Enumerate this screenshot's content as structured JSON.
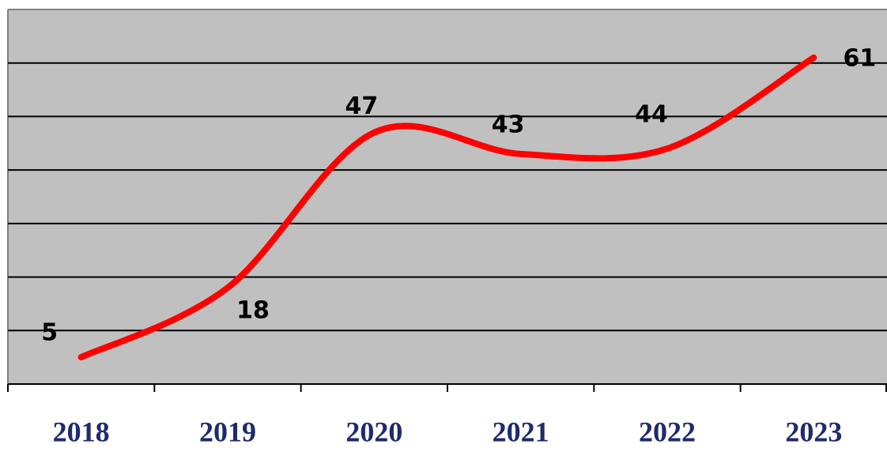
{
  "chart_data": {
    "type": "line",
    "categories": [
      "2018",
      "2019",
      "2020",
      "2021",
      "2022",
      "2023"
    ],
    "values": [
      5,
      18,
      47,
      43,
      44,
      61
    ],
    "color": "#ff0000",
    "ylim": [
      0,
      70
    ],
    "yticks": [
      10,
      20,
      30,
      40,
      50,
      60
    ],
    "grid": true
  }
}
